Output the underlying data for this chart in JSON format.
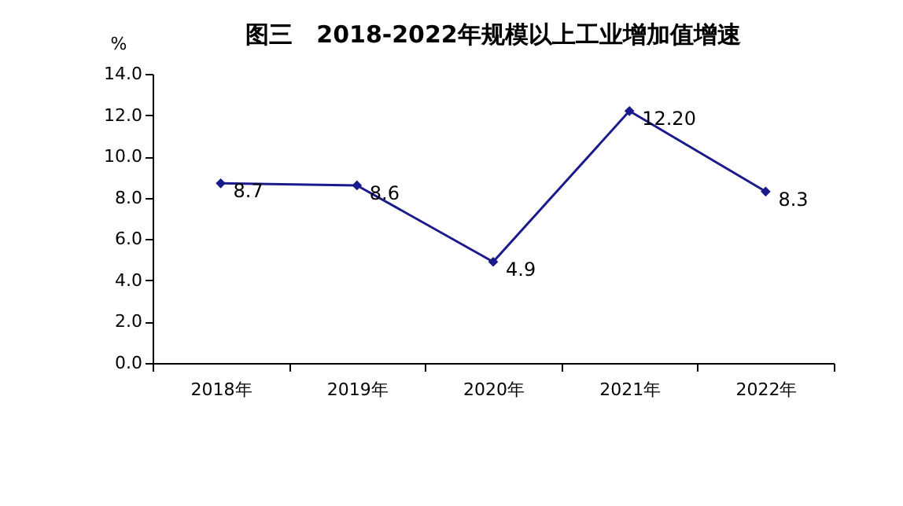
{
  "chart_data": {
    "type": "line",
    "title": "图三　2018-2022年规模以上工业增加值增速",
    "ylabel": "%",
    "categories": [
      "2018年",
      "2019年",
      "2020年",
      "2021年",
      "2022年"
    ],
    "series": [
      {
        "color": "#1a1a8c",
        "values": [
          8.7,
          8.6,
          4.9,
          12.2,
          8.3
        ],
        "value_labels": [
          "8.7",
          "8.6",
          "4.9",
          "12.20",
          "8.3"
        ]
      }
    ],
    "ylim": [
      0,
      14
    ],
    "yticks": [
      {
        "value": 0,
        "label": "0.0"
      },
      {
        "value": 2,
        "label": "2.0"
      },
      {
        "value": 4,
        "label": "4.0"
      },
      {
        "value": 6,
        "label": "6.0"
      },
      {
        "value": 8,
        "label": "8.0"
      },
      {
        "value": 10,
        "label": "10.0"
      },
      {
        "value": 12,
        "label": "12.0"
      },
      {
        "value": 14,
        "label": "14.0"
      }
    ],
    "marker": "diamond",
    "line_style": "solid",
    "grid": false
  }
}
